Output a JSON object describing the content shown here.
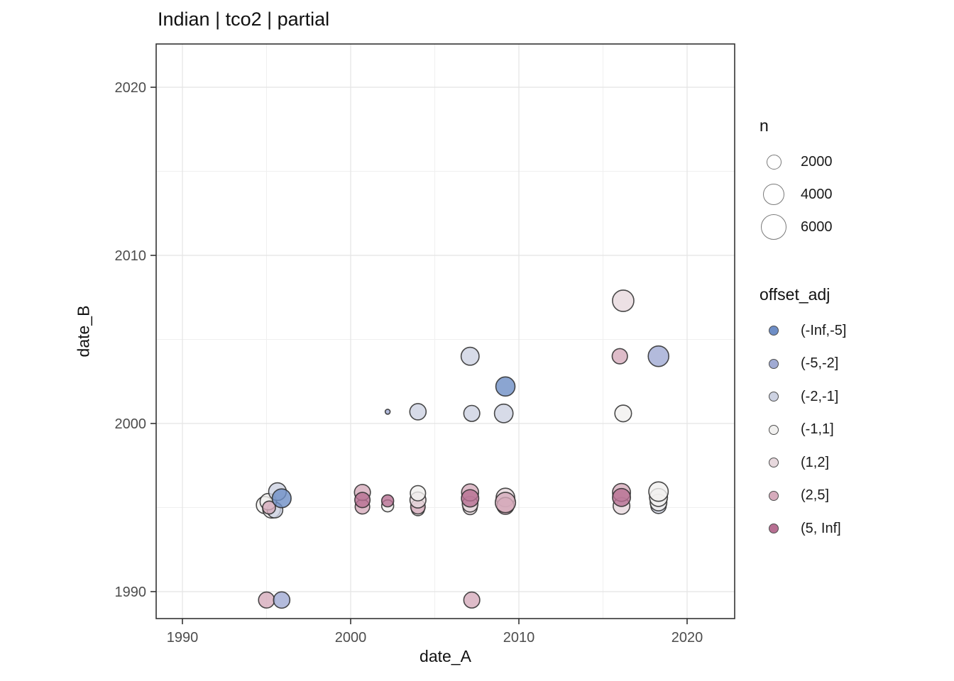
{
  "title": "Indian | tco2 | partial",
  "chart_data": {
    "type": "scatter",
    "title": "Indian | tco2 | partial",
    "xlabel": "date_A",
    "ylabel": "date_B",
    "xlim": [
      1988.4,
      2022.8
    ],
    "ylim": [
      1988.4,
      2022.6
    ],
    "x_ticks": [
      1990,
      2000,
      2010,
      2020
    ],
    "y_ticks": [
      1990,
      2000,
      2010,
      2020
    ],
    "x_minor_ticks": [
      1995,
      2005,
      2015
    ],
    "y_minor_ticks": [
      1995,
      2005,
      2015
    ],
    "grid": "on",
    "panel_border_color": "#333333",
    "grid_major_color": "#e4e4e4",
    "grid_minor_color": "#f0f0f0",
    "point_stroke_color": "#2a2a2a",
    "legend_position": "right",
    "size_legend": {
      "title": "n",
      "values": [
        2000,
        4000,
        6000
      ]
    },
    "color_legend": {
      "title": "offset_adj",
      "bins": [
        {
          "label": "(-Inf,-5]",
          "color": "#6e8ec6"
        },
        {
          "label": "(-5,-2]",
          "color": "#a0aad3"
        },
        {
          "label": "(-2,-1]",
          "color": "#cdd2e2"
        },
        {
          "label": "(-1,1]",
          "color": "#f1f0ef"
        },
        {
          "label": "(1,2]",
          "color": "#e7d8dd"
        },
        {
          "label": "(2,5]",
          "color": "#d6abbc"
        },
        {
          "label": "(5, Inf]",
          "color": "#b76f92"
        }
      ]
    },
    "points": [
      {
        "x": 1994.9,
        "y": 1995.15,
        "bin": "(-1,1]",
        "n": 2600
      },
      {
        "x": 1995.3,
        "y": 1994.9,
        "bin": "(-1,1]",
        "n": 2800
      },
      {
        "x": 1995.5,
        "y": 1994.85,
        "bin": "(-2,-1]",
        "n": 2200
      },
      {
        "x": 1995.1,
        "y": 1995.35,
        "bin": "(-1,1]",
        "n": 2400
      },
      {
        "x": 1995.15,
        "y": 1995.0,
        "bin": "(2,5]",
        "n": 1500
      },
      {
        "x": 1995.65,
        "y": 1995.95,
        "bin": "(-2,-1]",
        "n": 2800
      },
      {
        "x": 1995.9,
        "y": 1995.55,
        "bin": "(-Inf,-5]",
        "n": 3200
      },
      {
        "x": 1995.0,
        "y": 1989.5,
        "bin": "(2,5]",
        "n": 2300
      },
      {
        "x": 1995.9,
        "y": 1989.5,
        "bin": "(-5,-2]",
        "n": 2400
      },
      {
        "x": 2007.2,
        "y": 1989.5,
        "bin": "(2,5]",
        "n": 2300
      },
      {
        "x": 2000.7,
        "y": 1995.05,
        "bin": "(2,5]",
        "n": 1900
      },
      {
        "x": 2000.7,
        "y": 1995.9,
        "bin": "(2,5]",
        "n": 2300
      },
      {
        "x": 2000.7,
        "y": 1995.45,
        "bin": "(5, Inf]",
        "n": 2100
      },
      {
        "x": 2002.2,
        "y": 1995.1,
        "bin": "(-1,1]",
        "n": 1300
      },
      {
        "x": 2002.2,
        "y": 1995.4,
        "bin": "(5, Inf]",
        "n": 1300
      },
      {
        "x": 2002.2,
        "y": 2000.7,
        "bin": "(-5,-2]",
        "n": 220
      },
      {
        "x": 2004.0,
        "y": 2000.7,
        "bin": "(-2,-1]",
        "n": 2400
      },
      {
        "x": 2004.0,
        "y": 1994.9,
        "bin": "(-1,1]",
        "n": 1500
      },
      {
        "x": 2004.0,
        "y": 1995.05,
        "bin": "(2,5]",
        "n": 1900
      },
      {
        "x": 2004.0,
        "y": 1995.45,
        "bin": "(1,2]",
        "n": 2300
      },
      {
        "x": 2004.0,
        "y": 1995.85,
        "bin": "(-1,1]",
        "n": 2100
      },
      {
        "x": 2007.1,
        "y": 2004.0,
        "bin": "(-2,-1]",
        "n": 2900
      },
      {
        "x": 2007.2,
        "y": 2000.6,
        "bin": "(-2,-1]",
        "n": 2300
      },
      {
        "x": 2007.1,
        "y": 1995.0,
        "bin": "(1,2]",
        "n": 1800
      },
      {
        "x": 2007.1,
        "y": 1995.2,
        "bin": "(1,2]",
        "n": 2200
      },
      {
        "x": 2007.1,
        "y": 1995.9,
        "bin": "(2,5]",
        "n": 2600
      },
      {
        "x": 2007.1,
        "y": 1995.55,
        "bin": "(5, Inf]",
        "n": 2700
      },
      {
        "x": 2009.2,
        "y": 2002.2,
        "bin": "(-Inf,-5]",
        "n": 3300
      },
      {
        "x": 2009.1,
        "y": 2000.6,
        "bin": "(-2,-1]",
        "n": 3100
      },
      {
        "x": 2009.2,
        "y": 1995.6,
        "bin": "(1,2]",
        "n": 3100
      },
      {
        "x": 2009.2,
        "y": 1995.1,
        "bin": "(2,5]",
        "n": 2600
      },
      {
        "x": 2009.2,
        "y": 1995.3,
        "bin": "(2,5]",
        "n": 3700
      },
      {
        "x": 2016.2,
        "y": 2007.3,
        "bin": "(1,2]",
        "n": 4100
      },
      {
        "x": 2016.0,
        "y": 2004.0,
        "bin": "(2,5]",
        "n": 2100
      },
      {
        "x": 2016.2,
        "y": 2000.6,
        "bin": "(-1,1]",
        "n": 2500
      },
      {
        "x": 2016.1,
        "y": 1995.1,
        "bin": "(1,2]",
        "n": 2500
      },
      {
        "x": 2016.1,
        "y": 1995.9,
        "bin": "(2,5]",
        "n": 2900
      },
      {
        "x": 2016.1,
        "y": 1995.6,
        "bin": "(5, Inf]",
        "n": 2900
      },
      {
        "x": 2018.3,
        "y": 2004.0,
        "bin": "(-5,-2]",
        "n": 3800
      },
      {
        "x": 2018.3,
        "y": 1995.1,
        "bin": "(-2,-1]",
        "n": 2100
      },
      {
        "x": 2018.3,
        "y": 1995.3,
        "bin": "(-1,1]",
        "n": 2500
      },
      {
        "x": 2018.3,
        "y": 1995.6,
        "bin": "(-1,1]",
        "n": 2900
      },
      {
        "x": 2018.3,
        "y": 1995.95,
        "bin": "(-1,1]",
        "n": 3400
      }
    ]
  }
}
